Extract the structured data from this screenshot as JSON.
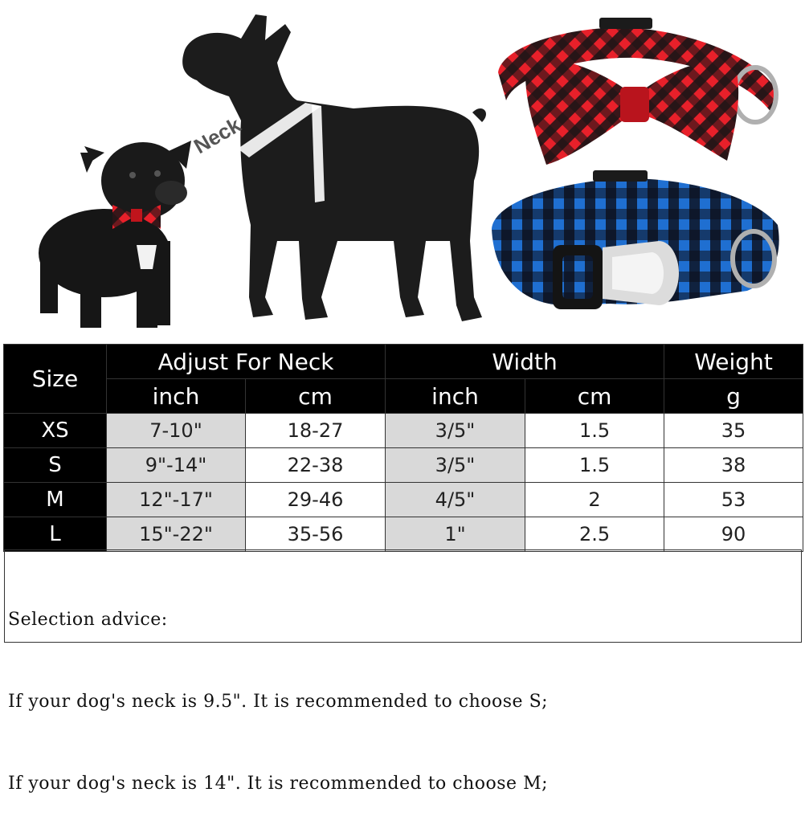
{
  "image": {
    "neck_label": "Neck"
  },
  "table": {
    "size_header": "Size",
    "neck_header": "Adjust For Neck",
    "width_header": "Width",
    "weight_header": "Weight",
    "neck_inch": "inch",
    "neck_cm": "cm",
    "width_inch": "inch",
    "width_cm": "cm",
    "weight_unit": "g",
    "rows": [
      {
        "size": "XS",
        "neck_inch": "7-10\"",
        "neck_cm": "18-27",
        "width_inch": "3/5\"",
        "width_cm": "1.5",
        "weight": "35"
      },
      {
        "size": "S",
        "neck_inch": "9\"-14\"",
        "neck_cm": "22-38",
        "width_inch": "3/5\"",
        "width_cm": "1.5",
        "weight": "38"
      },
      {
        "size": "M",
        "neck_inch": "12\"-17\"",
        "neck_cm": "29-46",
        "width_inch": "4/5\"",
        "width_cm": "2",
        "weight": "53"
      },
      {
        "size": "L",
        "neck_inch": "15\"-22\"",
        "neck_cm": "35-56",
        "width_inch": "1\"",
        "width_cm": "2.5",
        "weight": "90"
      }
    ]
  },
  "advice": {
    "title": "Selection advice:",
    "line1": "If your dog's neck is 9.5\". It is recommended to choose S;",
    "line2": "If your dog's neck is 14\". It is recommended to choose M;"
  },
  "colors": {
    "header_bg": "#000000",
    "shade": "#d9d9d9",
    "red_plaid": "#e8202a",
    "blue_plaid": "#1f6fd1",
    "silhouette": "#1c1c1c"
  }
}
